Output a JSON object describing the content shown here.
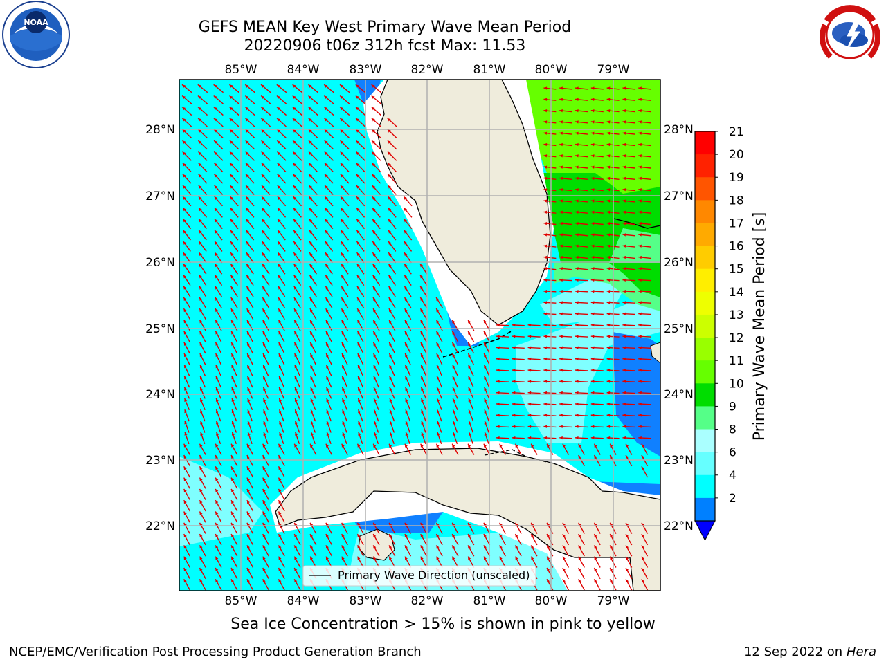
{
  "header": {
    "title_line1": "GEFS MEAN Key West Primary Wave Mean Period",
    "title_line2": "20220906 t06z 312h fcst   Max: 11.53"
  },
  "map": {
    "lon_labels": [
      "85°W",
      "84°W",
      "83°W",
      "82°W",
      "81°W",
      "80°W",
      "79°W"
    ],
    "lat_labels": [
      "28°N",
      "27°N",
      "26°N",
      "25°N",
      "24°N",
      "23°N",
      "22°N"
    ],
    "legend_label": "Primary Wave Direction (unscaled)",
    "arrow_color": "#e00000",
    "land_color": "#efecdc",
    "grid_color": "#b0b0b0"
  },
  "colorbar": {
    "label": "Primary Wave Mean Period [s]",
    "ticks": [
      "21",
      "20",
      "19",
      "18",
      "17",
      "16",
      "15",
      "14",
      "13",
      "12",
      "11",
      "10",
      "9",
      "8",
      "6",
      "4",
      "2"
    ],
    "colors": [
      "#ff0000",
      "#ff2200",
      "#ff5500",
      "#ff8800",
      "#ffaa00",
      "#ffcc00",
      "#ffee00",
      "#eeff00",
      "#ccff00",
      "#99ff00",
      "#66ff00",
      "#00dd00",
      "#55ff88",
      "#aaffff",
      "#66ffff",
      "#00ffff",
      "#0080ff"
    ],
    "extend_color": "#0000ff"
  },
  "caption": "Sea Ice Concentration > 15% is shown in pink to yellow",
  "footer": {
    "left": "NCEP/EMC/Verification Post Processing Product Generation Branch",
    "right_date": "12 Sep 2022 on",
    "right_host": "Hera"
  },
  "logos": {
    "left": "NOAA",
    "right": "NATIONAL WEATHER SERVICE"
  }
}
